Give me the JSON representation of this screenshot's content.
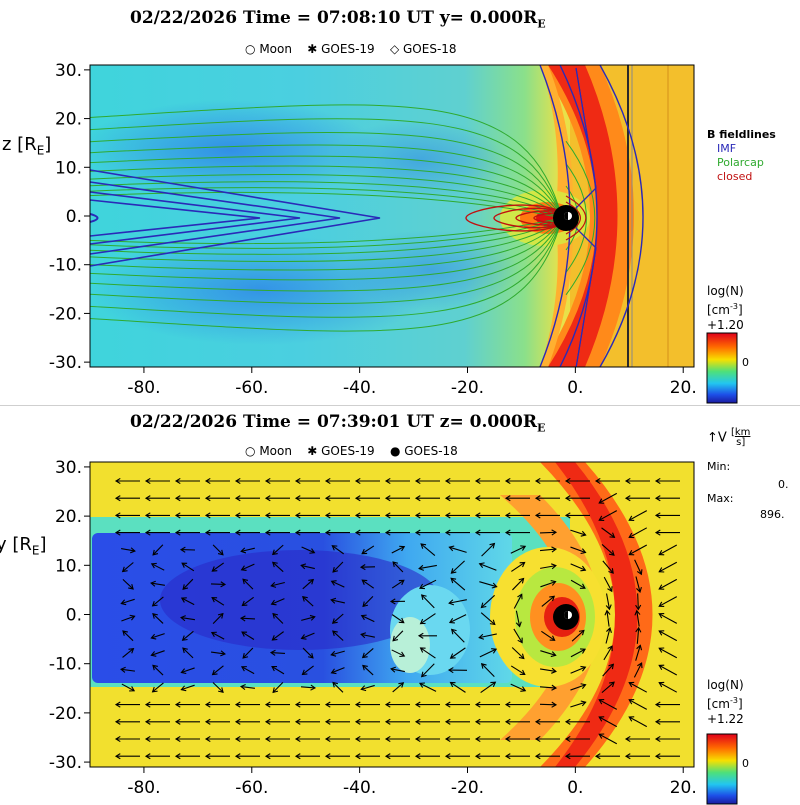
{
  "chart_data": [
    {
      "type": "heatmap",
      "title": "02/22/2026 Time = 07:08:10 UT y= 0.000R",
      "title_sub": "E",
      "markers": [
        {
          "symbol": "○",
          "label": "Moon"
        },
        {
          "symbol": "✱",
          "label": "GOES-19"
        },
        {
          "symbol": "◇",
          "label": "GOES-18"
        }
      ],
      "ylabel": "z [R",
      "ylabel_sub": "E",
      "ylabel_tail": "]",
      "xlim": [
        -90,
        22
      ],
      "ylim": [
        -31,
        31
      ],
      "xticks": [
        "-80.",
        "-60.",
        "-40.",
        "-20.",
        "0.",
        "20."
      ],
      "xtick_values": [
        -80,
        -60,
        -40,
        -20,
        0,
        20
      ],
      "yticks": [
        "30.",
        "20.",
        "10.",
        "0.",
        "-10.",
        "-20.",
        "-30."
      ],
      "ytick_values": [
        30,
        20,
        10,
        0,
        -10,
        -20,
        -30
      ],
      "fieldline_legend": {
        "title": "B fieldlines",
        "items": [
          {
            "label": "IMF",
            "color": "#2a2ab8"
          },
          {
            "label": "Polarcap",
            "color": "#2faa2f"
          },
          {
            "label": "closed",
            "color": "#c01010"
          }
        ]
      },
      "colorbar": {
        "label": "log(N)",
        "unit": "[cm",
        "unit_sup": "-3",
        "unit_tail": "]",
        "max_label": "+1.20",
        "mid_label": "0"
      }
    },
    {
      "type": "heatmap",
      "title": "02/22/2026 Time = 07:39:01 UT z= 0.000R",
      "title_sub": "E",
      "markers": [
        {
          "symbol": "○",
          "label": "Moon"
        },
        {
          "symbol": "✱",
          "label": "GOES-19"
        },
        {
          "symbol": "●",
          "label": "GOES-18"
        }
      ],
      "ylabel": "y [R",
      "ylabel_sub": "E",
      "ylabel_tail": "]",
      "xlim": [
        -90,
        22
      ],
      "ylim": [
        -31,
        31
      ],
      "xticks": [
        "-80.",
        "-60.",
        "-40.",
        "-20.",
        "0.",
        "20."
      ],
      "xtick_values": [
        -80,
        -60,
        -40,
        -20,
        0,
        20
      ],
      "yticks": [
        "30.",
        "20.",
        "10.",
        "0.",
        "-10.",
        "-20.",
        "-30."
      ],
      "ytick_values": [
        30,
        20,
        10,
        0,
        -10,
        -20,
        -30
      ],
      "vector_legend": {
        "symbol": "V",
        "unit_num": "km",
        "unit_den": "s",
        "min_label": "Min:",
        "min_value": "0.",
        "max_label": "Max:",
        "max_value": "896."
      },
      "colorbar": {
        "label": "log(N)",
        "unit": "[cm",
        "unit_sup": "-3",
        "unit_tail": "]",
        "max_label": "+1.22",
        "mid_label": "0"
      }
    }
  ]
}
